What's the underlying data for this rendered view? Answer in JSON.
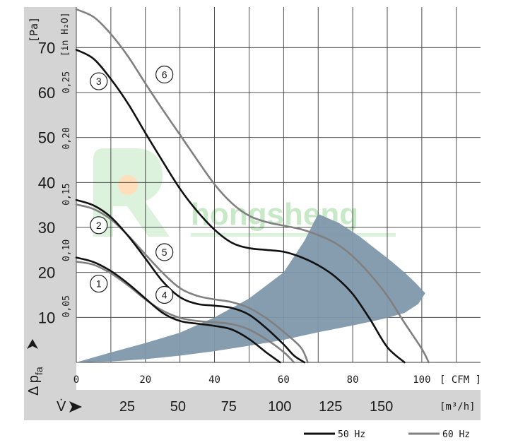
{
  "chart_data": {
    "type": "line",
    "x_unit": "CFM",
    "x_unit_label": "[ CFM ]",
    "x_ticks": [
      "0",
      "20",
      "40",
      "60",
      "80",
      "100"
    ],
    "x_range": [
      0,
      117
    ],
    "y_unit": "Pa",
    "y_unit_label": "[Pa]",
    "y_range": [
      0,
      79
    ],
    "y_ticks": [
      "10",
      "20",
      "30",
      "40",
      "50",
      "60",
      "70"
    ],
    "y_secondary_unit_label": "[in H₂O]",
    "y_secondary_ticks": [
      "0,05",
      "0,10",
      "0,15",
      "0,20",
      "0,25"
    ],
    "y_secondary_values": [
      0.05,
      0.1,
      0.15,
      0.2,
      0.25
    ],
    "y_axis_label": "Δ p",
    "y_axis_label_sub": "fa",
    "x2_label": "V̇",
    "x2_unit_label": "[m³/h]",
    "x2_ticks": [
      "25",
      "50",
      "75",
      "100",
      "125",
      "150"
    ],
    "x2_values": [
      25,
      50,
      75,
      100,
      125,
      150
    ],
    "grid": true,
    "series": [
      {
        "name": "1",
        "freq": "50 Hz",
        "label_at": [
          6.5,
          17.5
        ],
        "points": [
          [
            0,
            23.3
          ],
          [
            5,
            22.3
          ],
          [
            10,
            20.3
          ],
          [
            15,
            17.5
          ],
          [
            20,
            14.2
          ],
          [
            25,
            11.0
          ],
          [
            30,
            9.2
          ],
          [
            35,
            8.6
          ],
          [
            40,
            8.1
          ],
          [
            45,
            7.3
          ],
          [
            50,
            5.2
          ],
          [
            55,
            2.2
          ],
          [
            59,
            0
          ]
        ]
      },
      {
        "name": "2",
        "freq": "50 Hz",
        "label_at": [
          6.5,
          30.5
        ],
        "points": [
          [
            0,
            36.1
          ],
          [
            5,
            34.9
          ],
          [
            10,
            32.3
          ],
          [
            15,
            28.1
          ],
          [
            20,
            23.1
          ],
          [
            25,
            18.0
          ],
          [
            30,
            14.5
          ],
          [
            35,
            13.0
          ],
          [
            40,
            12.6
          ],
          [
            45,
            12.1
          ],
          [
            50,
            10.6
          ],
          [
            55,
            7.6
          ],
          [
            60,
            4.0
          ],
          [
            63,
            1.5
          ],
          [
            66,
            0
          ]
        ]
      },
      {
        "name": "3",
        "freq": "50 Hz",
        "label_at": [
          6.5,
          62.5
        ],
        "points": [
          [
            0,
            69.5
          ],
          [
            5,
            67.5
          ],
          [
            10,
            63.0
          ],
          [
            15,
            57.5
          ],
          [
            20,
            51.0
          ],
          [
            25,
            44.7
          ],
          [
            30,
            38.6
          ],
          [
            35,
            33.6
          ],
          [
            40,
            29.5
          ],
          [
            45,
            26.6
          ],
          [
            50,
            25.4
          ],
          [
            55,
            25.0
          ],
          [
            60,
            24.6
          ],
          [
            65,
            23.4
          ],
          [
            70,
            21.6
          ],
          [
            75,
            19.0
          ],
          [
            80,
            15.2
          ],
          [
            85,
            9.6
          ],
          [
            90,
            3.4
          ],
          [
            95,
            0
          ]
        ]
      },
      {
        "name": "4",
        "freq": "60 Hz",
        "label_at": [
          25.5,
          15.0
        ],
        "points": [
          [
            0,
            22.4
          ],
          [
            5,
            21.7
          ],
          [
            10,
            19.8
          ],
          [
            15,
            17.1
          ],
          [
            20,
            14.0
          ],
          [
            25,
            11.5
          ],
          [
            30,
            9.9
          ],
          [
            35,
            9.2
          ],
          [
            40,
            8.9
          ],
          [
            45,
            8.5
          ],
          [
            50,
            7.3
          ],
          [
            55,
            5.1
          ],
          [
            60,
            2.3
          ],
          [
            63,
            0
          ]
        ]
      },
      {
        "name": "5",
        "freq": "60 Hz",
        "label_at": [
          25.5,
          24.5
        ],
        "points": [
          [
            0,
            35.1
          ],
          [
            5,
            34.1
          ],
          [
            10,
            31.8
          ],
          [
            15,
            28.2
          ],
          [
            20,
            24.0
          ],
          [
            25,
            19.9
          ],
          [
            30,
            16.5
          ],
          [
            35,
            14.8
          ],
          [
            40,
            14.0
          ],
          [
            45,
            13.4
          ],
          [
            50,
            12.1
          ],
          [
            55,
            9.8
          ],
          [
            60,
            6.8
          ],
          [
            65,
            3.3
          ],
          [
            67,
            0
          ]
        ]
      },
      {
        "name": "6",
        "freq": "60 Hz",
        "label_at": [
          25.5,
          64.0
        ],
        "points": [
          [
            0,
            78.5
          ],
          [
            5,
            76.8
          ],
          [
            10,
            73.0
          ],
          [
            15,
            68.0
          ],
          [
            20,
            62.0
          ],
          [
            25,
            56.2
          ],
          [
            30,
            50.6
          ],
          [
            35,
            45.0
          ],
          [
            40,
            39.6
          ],
          [
            45,
            35.4
          ],
          [
            50,
            32.6
          ],
          [
            55,
            31.2
          ],
          [
            60,
            30.4
          ],
          [
            65,
            29.6
          ],
          [
            70,
            28.3
          ],
          [
            75,
            26.5
          ],
          [
            80,
            23.6
          ],
          [
            85,
            19.6
          ],
          [
            90,
            14.8
          ],
          [
            95,
            8.8
          ],
          [
            100,
            3.0
          ],
          [
            102,
            0
          ]
        ]
      }
    ],
    "operating_range": {
      "points": [
        [
          0,
          0
        ],
        [
          10,
          2.2
        ],
        [
          20,
          4.3
        ],
        [
          30,
          6.6
        ],
        [
          40,
          10.0
        ],
        [
          50,
          14.2
        ],
        [
          60,
          20.0
        ],
        [
          66,
          27.0
        ],
        [
          70,
          33.0
        ],
        [
          76,
          31.0
        ],
        [
          82,
          28.0
        ],
        [
          87,
          25.0
        ],
        [
          91,
          22.6
        ],
        [
          95,
          20.0
        ],
        [
          98,
          17.8
        ],
        [
          101,
          15.4
        ],
        [
          99,
          13.0
        ],
        [
          95,
          11.0
        ],
        [
          89,
          9.7
        ],
        [
          80,
          8.2
        ],
        [
          70,
          6.7
        ],
        [
          60,
          5.0
        ],
        [
          50,
          3.7
        ],
        [
          40,
          2.5
        ],
        [
          30,
          1.5
        ],
        [
          20,
          0.7
        ],
        [
          10,
          0.2
        ],
        [
          0,
          0
        ]
      ]
    },
    "legend": [
      {
        "label": "50 Hz",
        "color": "#111111"
      },
      {
        "label": "60 Hz",
        "color": "#808080"
      }
    ],
    "colors": {
      "line_50hz": "#111111",
      "line_60hz": "#808080",
      "operating_area": "#7f97ab",
      "panel": "#d4d4d4",
      "grid": "#3a3a3a"
    },
    "watermark": "hongsheng"
  }
}
